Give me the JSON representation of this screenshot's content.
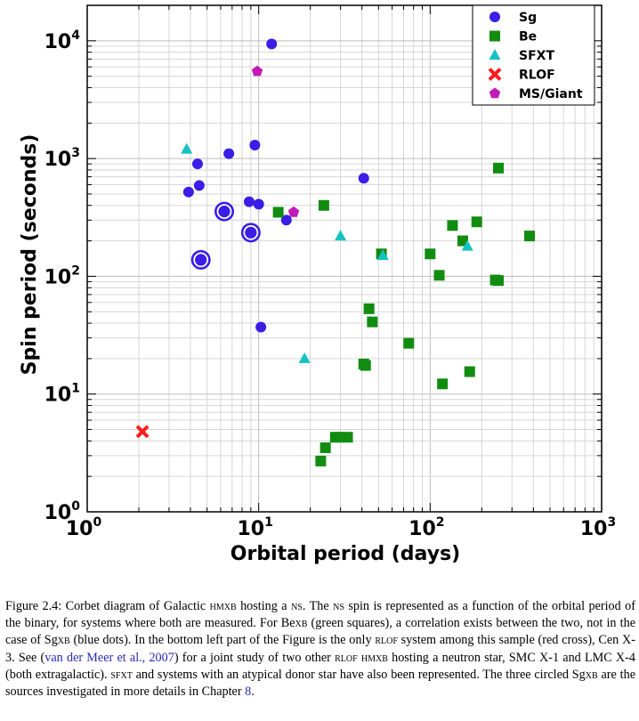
{
  "chart_data": {
    "type": "scatter",
    "xlabel": "Orbital period (days)",
    "ylabel": "Spin period (seconds)",
    "x_scale": "log",
    "y_scale": "log",
    "xlim": [
      1,
      1000
    ],
    "ylim": [
      1,
      20000
    ],
    "x_ticks": [
      {
        "base": "10",
        "exp": "0"
      },
      {
        "base": "10",
        "exp": "1"
      },
      {
        "base": "10",
        "exp": "2"
      },
      {
        "base": "10",
        "exp": "3"
      }
    ],
    "y_ticks": [
      {
        "base": "10",
        "exp": "0"
      },
      {
        "base": "10",
        "exp": "1"
      },
      {
        "base": "10",
        "exp": "2"
      },
      {
        "base": "10",
        "exp": "3"
      },
      {
        "base": "10",
        "exp": "4"
      }
    ],
    "grid": true,
    "legend_position": "top-right",
    "series": [
      {
        "name": "Sg",
        "marker": "circle",
        "color": "#3a1ee6",
        "points": [
          [
            11.9,
            9400
          ],
          [
            9.5,
            1300
          ],
          [
            6.7,
            1100
          ],
          [
            4.4,
            900
          ],
          [
            4.5,
            590
          ],
          [
            3.9,
            520
          ],
          [
            8.8,
            430
          ],
          [
            10.0,
            410
          ],
          [
            41.0,
            680
          ],
          [
            14.5,
            300
          ],
          [
            10.3,
            37
          ]
        ]
      },
      {
        "name": "Be",
        "marker": "square",
        "color": "#118c11",
        "points": [
          [
            250,
            830
          ],
          [
            24,
            400
          ],
          [
            13,
            350
          ],
          [
            135,
            270
          ],
          [
            187,
            290
          ],
          [
            155,
            200
          ],
          [
            380,
            220
          ],
          [
            52,
            155
          ],
          [
            100,
            155
          ],
          [
            113,
            102
          ],
          [
            240,
            93
          ],
          [
            250,
            92
          ],
          [
            44,
            53
          ],
          [
            46,
            41
          ],
          [
            75,
            27
          ],
          [
            41,
            18
          ],
          [
            42,
            17.5
          ],
          [
            118,
            12.2
          ],
          [
            170,
            15.5
          ],
          [
            23,
            2.7
          ],
          [
            24.5,
            3.5
          ],
          [
            28,
            4.3
          ],
          [
            30,
            4.3
          ],
          [
            33,
            4.3
          ]
        ]
      },
      {
        "name": "SFXT",
        "marker": "triangle",
        "color": "#14c2c2",
        "points": [
          [
            3.8,
            1200
          ],
          [
            30,
            220
          ],
          [
            53,
            150
          ],
          [
            165,
            180
          ],
          [
            18.5,
            20
          ]
        ]
      },
      {
        "name": "RLOF",
        "marker": "cross",
        "color": "#ff1a1a",
        "points": [
          [
            2.1,
            4.8
          ]
        ]
      },
      {
        "name": "MS/Giant",
        "marker": "pentagon",
        "color": "#c21ab8",
        "points": [
          [
            9.8,
            5500
          ],
          [
            16.0,
            350
          ]
        ]
      }
    ],
    "circled_sources": [
      [
        6.3,
        355
      ],
      [
        9.0,
        235
      ],
      [
        4.6,
        138
      ]
    ]
  },
  "caption": {
    "seg1": "Figure 2.4: Corbet diagram of Galactic ",
    "hmxb": "hmxb",
    "seg2": " hosting a ",
    "ns1": "ns",
    "seg3": ". The ",
    "ns2": "ns",
    "seg4": " spin is represented as a function of the orbital period of the binary, for systems where both are measured. For Be",
    "xb1": "xb",
    "seg5": " (green squares), a correlation exists between the two, not in the case of Sg",
    "xb2": "xb",
    "seg6": " (blue dots). In the bottom left part of the Figure is the only ",
    "rlof1": "rlof",
    "seg7": " system among this sample (red cross), Cen X-3. See (",
    "ref": "van der Meer et al., 2007",
    "seg8": ") for a joint study of two other ",
    "rlof2": "rlof",
    "seg9": " ",
    "hmxb2": "hmxb",
    "seg10": " hosting a neutron star, SMC X-1 and LMC X-4 (both extragalactic). ",
    "sfxt": "sfxt",
    "seg11": " and systems with an atypical donor star have also been represented. The three circled Sg",
    "xb3": "xb",
    "seg12": " are the sources investigated in more details in Chapter ",
    "chapter": "8",
    "seg13": "."
  }
}
